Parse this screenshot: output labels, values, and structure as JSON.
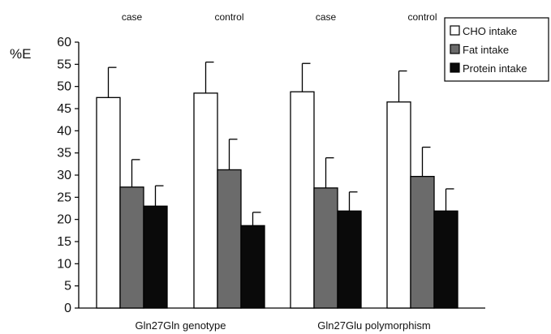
{
  "chart_data": {
    "type": "bar",
    "ylabel": "%E",
    "ylim": [
      0,
      60
    ],
    "ytick_step": 5,
    "grid": false,
    "legend_position": "top-right",
    "group_labels": [
      "Gln27Gln genotype",
      "Gln27Glu polymorphism"
    ],
    "categories": [
      "case",
      "control",
      "case",
      "control"
    ],
    "series": [
      {
        "name": "CHO intake",
        "color": "#ffffff",
        "values": [
          47.5,
          48.5,
          48.8,
          46.5
        ],
        "error": [
          6.8,
          7.0,
          6.4,
          7.0
        ]
      },
      {
        "name": "Fat intake",
        "color": "#6b6b6b",
        "values": [
          27.3,
          31.2,
          27.1,
          29.7
        ],
        "error": [
          6.2,
          6.9,
          6.8,
          6.6
        ]
      },
      {
        "name": "Protein intake",
        "color": "#0a0a0a",
        "values": [
          23.0,
          18.6,
          21.9,
          21.9
        ],
        "error": [
          4.6,
          3.0,
          4.3,
          5.0
        ]
      }
    ]
  }
}
